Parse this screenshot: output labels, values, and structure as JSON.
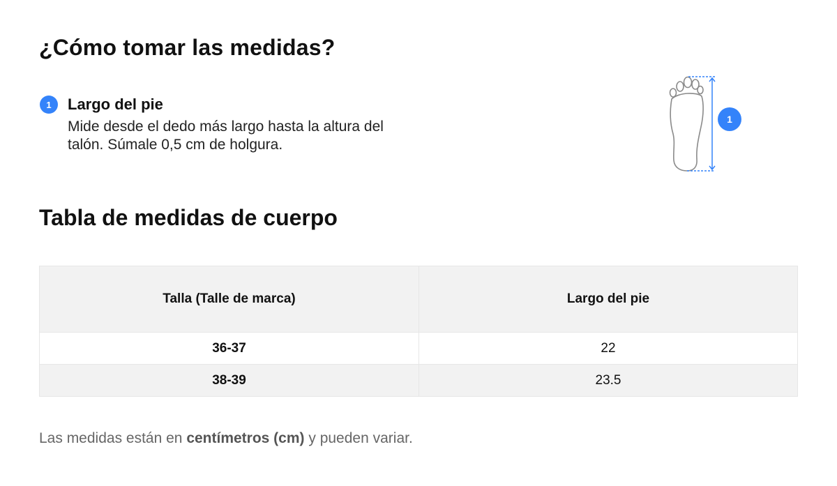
{
  "page": {
    "title": "¿Cómo tomar las medidas?",
    "subtitle": "Tabla de medidas de cuerpo"
  },
  "step": {
    "number": "1",
    "title": "Largo del pie",
    "description": "Mide desde el dedo más largo hasta la altura del talón. Súmale 0,5 cm de holgura."
  },
  "figure": {
    "marker": "1",
    "accent_color": "#3483fa",
    "icon": "foot-outline-icon"
  },
  "table": {
    "headers": [
      "Talla (Talle de marca)",
      "Largo del pie"
    ],
    "rows": [
      [
        "36-37",
        "22"
      ],
      [
        "38-39",
        "23.5"
      ]
    ]
  },
  "note": {
    "before": "Las medidas están en ",
    "bold": "centímetros (cm)",
    "after": " y pueden variar."
  }
}
